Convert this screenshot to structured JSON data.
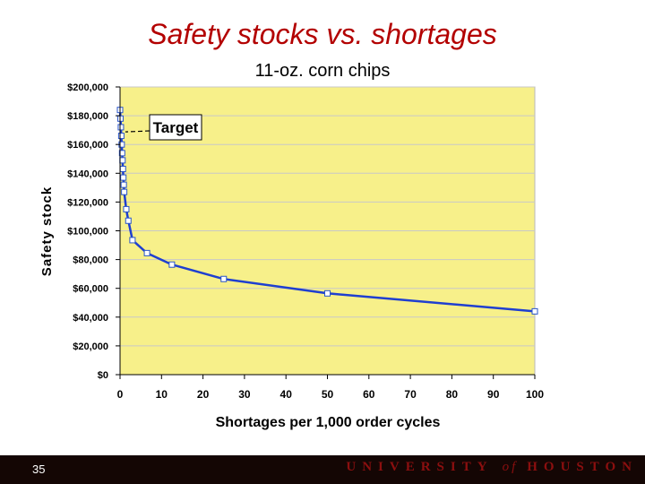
{
  "slide": {
    "title": "Safety stocks vs. shortages",
    "slide_number": "35",
    "footer": {
      "university": "UNIVERSITY",
      "of": "of",
      "houston": "HOUSTON"
    }
  },
  "colors": {
    "title": "#b30000",
    "plot_background": "#f7f08a",
    "line": "#1f3fd0",
    "marker_fill": "#ffffff",
    "grid": "#c8c8c8",
    "footer_background": "#140604",
    "footer_text": "#8b0f0f"
  },
  "chart_data": {
    "type": "line",
    "subtitle": "11-oz. corn chips",
    "xlabel": "Shortages per 1,000 order cycles",
    "ylabel": "Safety stock",
    "xlim": [
      0,
      100
    ],
    "ylim": [
      0,
      200000
    ],
    "x_ticks": [
      0,
      10,
      20,
      30,
      40,
      50,
      60,
      70,
      80,
      90,
      100
    ],
    "y_ticks": [
      0,
      20000,
      40000,
      60000,
      80000,
      100000,
      120000,
      140000,
      160000,
      180000,
      200000
    ],
    "y_tick_labels": [
      "$0",
      "$20,000",
      "$40,000",
      "$60,000",
      "$80,000",
      "$100,000",
      "$120,000",
      "$140,000",
      "$160,000",
      "$180,000",
      "$200,000"
    ],
    "grid": "horizontal",
    "series": [
      {
        "x": [
          0,
          0.1,
          0.2,
          0.3,
          0.4,
          0.5,
          0.6,
          0.7,
          0.8,
          0.9,
          1,
          1.5,
          2,
          3,
          6.5,
          12.5,
          25,
          50,
          100
        ],
        "values": [
          184000,
          178000,
          172000,
          166000,
          160000,
          154000,
          149000,
          143000,
          137000,
          132000,
          127000,
          115000,
          107000,
          93500,
          84500,
          76500,
          66500,
          56500,
          44000
        ]
      }
    ],
    "annotations": [
      {
        "text": "Target",
        "x": 0,
        "y": 170000
      }
    ]
  }
}
